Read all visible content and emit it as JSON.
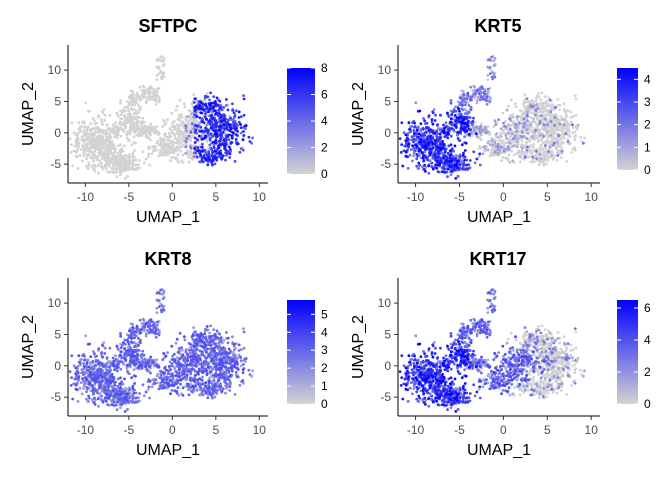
{
  "chart_data": [
    {
      "type": "scatter",
      "title": "SFTPC",
      "xlabel": "UMAP_1",
      "ylabel": "UMAP_2",
      "xlim": [
        -12,
        11
      ],
      "ylim": [
        -8,
        14
      ],
      "xticks": [
        -10,
        -5,
        0,
        5,
        10
      ],
      "yticks": [
        -5,
        0,
        5,
        10
      ],
      "legend": {
        "position": "right",
        "min": 0,
        "max": 8,
        "ticks": [
          0,
          2,
          4,
          6,
          8
        ],
        "low_color": "#d3d3d3",
        "high_color": "#0000ff"
      },
      "expression_pattern": "high in right cluster (x 3..8)"
    },
    {
      "type": "scatter",
      "title": "KRT5",
      "xlabel": "UMAP_1",
      "ylabel": "UMAP_2",
      "xlim": [
        -12,
        11
      ],
      "ylim": [
        -8,
        14
      ],
      "xticks": [
        -10,
        -5,
        0,
        5,
        10
      ],
      "yticks": [
        -5,
        0,
        5,
        10
      ],
      "legend": {
        "position": "right",
        "min": 0,
        "max": 4.5,
        "ticks": [
          0,
          1,
          2,
          3,
          4
        ],
        "low_color": "#d3d3d3",
        "high_color": "#0000ff"
      },
      "expression_pattern": "high in left cluster (x -11..-3)"
    },
    {
      "type": "scatter",
      "title": "KRT8",
      "xlabel": "UMAP_1",
      "ylabel": "UMAP_2",
      "xlim": [
        -12,
        11
      ],
      "ylim": [
        -8,
        14
      ],
      "xticks": [
        -10,
        -5,
        0,
        5,
        10
      ],
      "yticks": [
        -5,
        0,
        5,
        10
      ],
      "legend": {
        "position": "right",
        "min": 0,
        "max": 5.8,
        "ticks": [
          0,
          1,
          2,
          3,
          4,
          5
        ],
        "low_color": "#d3d3d3",
        "high_color": "#0000ff"
      },
      "expression_pattern": "moderate across most cells"
    },
    {
      "type": "scatter",
      "title": "KRT17",
      "xlabel": "UMAP_1",
      "ylabel": "UMAP_2",
      "xlim": [
        -12,
        11
      ],
      "ylim": [
        -8,
        14
      ],
      "xticks": [
        -10,
        -5,
        0,
        5,
        10
      ],
      "yticks": [
        -5,
        0,
        5,
        10
      ],
      "legend": {
        "position": "right",
        "min": 0,
        "max": 6.5,
        "ticks": [
          0,
          2,
          4,
          6
        ],
        "low_color": "#d3d3d3",
        "high_color": "#0000ff"
      },
      "expression_pattern": "high in left cluster, lower in right"
    }
  ]
}
